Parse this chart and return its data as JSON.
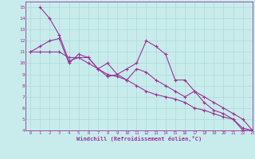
{
  "bg_color": "#c8ecec",
  "line_color": "#993399",
  "marker": "+",
  "xlabel": "Windchill (Refroidissement éolien,°C)",
  "xlim": [
    -0.5,
    23
  ],
  "ylim": [
    4,
    15.5
  ],
  "yticks": [
    4,
    5,
    6,
    7,
    8,
    9,
    10,
    11,
    12,
    13,
    14,
    15
  ],
  "xticks": [
    0,
    1,
    2,
    3,
    4,
    5,
    6,
    7,
    8,
    9,
    10,
    11,
    12,
    13,
    14,
    15,
    16,
    17,
    18,
    19,
    20,
    21,
    22,
    23
  ],
  "line1_x": [
    0,
    1,
    2,
    3,
    4,
    5,
    6,
    7,
    8,
    9,
    10,
    11,
    12,
    13,
    14,
    15,
    16,
    17,
    18,
    19,
    20,
    21,
    22,
    23
  ],
  "line1_y": [
    11.0,
    11.5,
    12.0,
    12.2,
    10.0,
    10.8,
    10.5,
    9.5,
    10.0,
    9.0,
    9.5,
    10.0,
    12.0,
    11.5,
    10.8,
    8.5,
    8.5,
    7.5,
    6.5,
    5.8,
    5.5,
    5.0,
    4.0,
    4.0
  ],
  "line2_x": [
    1,
    2,
    3,
    4,
    5,
    6,
    7,
    8,
    9,
    10,
    11,
    12,
    13,
    14,
    15,
    16,
    17,
    18,
    19,
    20,
    21,
    22,
    23
  ],
  "line2_y": [
    15.0,
    14.0,
    12.5,
    10.2,
    10.5,
    10.5,
    9.5,
    8.8,
    9.0,
    8.5,
    9.5,
    9.2,
    8.5,
    8.0,
    7.5,
    7.0,
    7.5,
    7.0,
    6.5,
    6.0,
    5.5,
    5.0,
    4.0
  ],
  "line3_x": [
    0,
    1,
    2,
    3,
    4,
    5,
    6,
    7,
    8,
    9,
    10,
    11,
    12,
    13,
    14,
    15,
    16,
    17,
    18,
    19,
    20,
    21,
    22,
    23
  ],
  "line3_y": [
    11.0,
    11.0,
    11.0,
    11.0,
    10.5,
    10.5,
    10.0,
    9.5,
    9.0,
    8.8,
    8.5,
    8.0,
    7.5,
    7.2,
    7.0,
    6.8,
    6.5,
    6.0,
    5.8,
    5.5,
    5.2,
    5.0,
    4.2,
    4.0
  ]
}
